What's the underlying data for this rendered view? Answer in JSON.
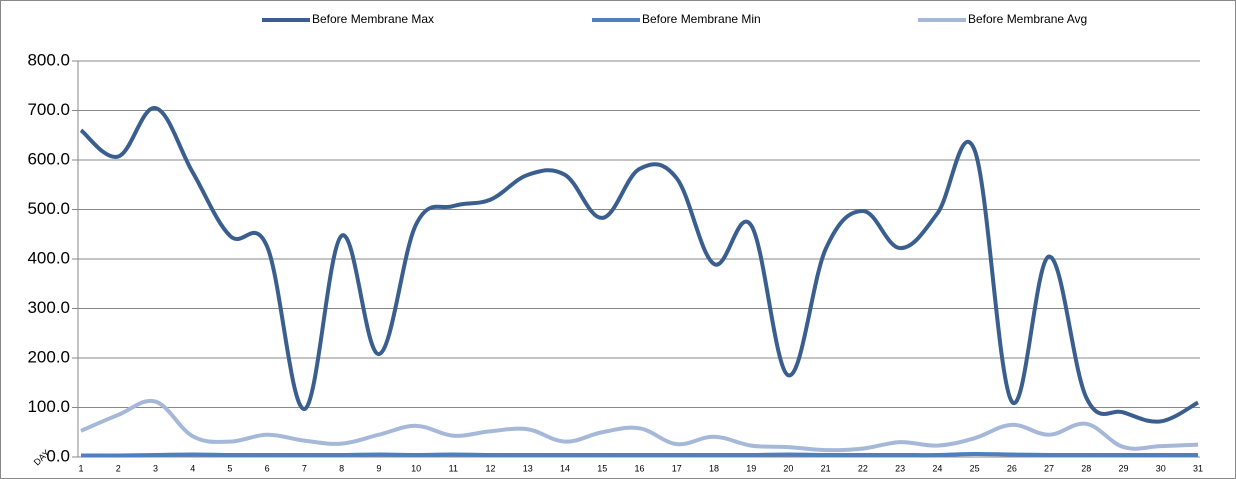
{
  "chart_data": {
    "type": "line",
    "x_label": "DAY",
    "categories": [
      "1",
      "2",
      "3",
      "4",
      "5",
      "6",
      "7",
      "8",
      "9",
      "10",
      "11",
      "12",
      "13",
      "14",
      "15",
      "16",
      "17",
      "18",
      "19",
      "20",
      "21",
      "22",
      "23",
      "24",
      "25",
      "26",
      "27",
      "28",
      "29",
      "30",
      "31"
    ],
    "series": [
      {
        "name": "Before Membrane Max",
        "color": "#3a5f8f",
        "values": [
          660,
          607,
          705,
          575,
          447,
          425,
          97,
          447,
          208,
          470,
          507,
          520,
          570,
          570,
          483,
          582,
          563,
          390,
          468,
          165,
          420,
          497,
          422,
          492,
          620,
          112,
          405,
          120,
          90,
          72,
          110
        ]
      },
      {
        "name": "Before Membrane Min",
        "color": "#4f7fbf",
        "values": [
          3,
          3,
          4,
          5,
          4,
          4,
          4,
          4,
          5,
          4,
          5,
          4,
          4,
          4,
          4,
          4,
          4,
          4,
          4,
          5,
          4,
          4,
          4,
          4,
          6,
          5,
          4,
          4,
          4,
          4,
          4
        ]
      },
      {
        "name": "Before Membrane Avg",
        "color": "#a6b8d8",
        "values": [
          53,
          85,
          112,
          42,
          31,
          45,
          33,
          27,
          45,
          63,
          43,
          52,
          56,
          31,
          50,
          58,
          26,
          41,
          23,
          20,
          14,
          17,
          30,
          23,
          38,
          65,
          45,
          67,
          20,
          22,
          25
        ]
      }
    ],
    "ylim": [
      0,
      800
    ],
    "yticks": [
      {
        "value": 0,
        "label": "0.0"
      },
      {
        "value": 100,
        "label": "100.0"
      },
      {
        "value": 200,
        "label": "200.0"
      },
      {
        "value": 300,
        "label": "300.0"
      },
      {
        "value": 400,
        "label": "400.0"
      },
      {
        "value": 500,
        "label": "500.0"
      },
      {
        "value": 600,
        "label": "600.0"
      },
      {
        "value": 700,
        "label": "700.0"
      },
      {
        "value": 800,
        "label": "800.0"
      }
    ],
    "grid": true,
    "legend": "top"
  }
}
